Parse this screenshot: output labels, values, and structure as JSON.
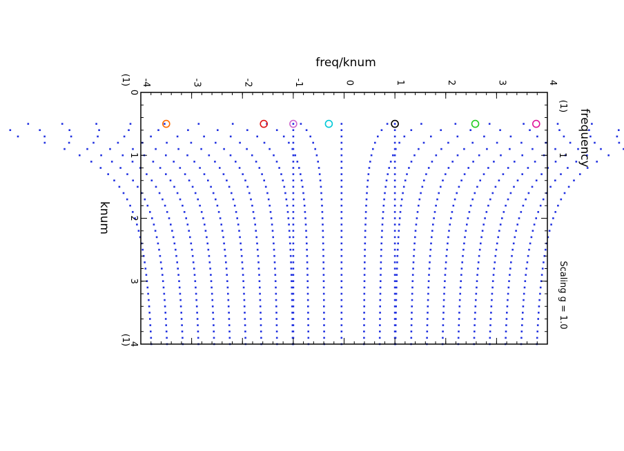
{
  "chart_data": {
    "type": "scatter",
    "title": "",
    "orientation": "rotated-90-clockwise",
    "xlabel": "knum",
    "xlabel_unit": "(1)",
    "ylabel": "freq/knum",
    "ylabel_unit": "(1)",
    "secondary_ylabel": "frequency",
    "secondary_ylabel_unit": "(1)",
    "xlim": [
      0,
      4
    ],
    "ylim": [
      -4,
      4
    ],
    "x_ticks": [
      "0",
      "1",
      "2",
      "3",
      "4"
    ],
    "y_ticks": [
      "-4",
      "-3",
      "-2",
      "-1",
      "0",
      "1",
      "2",
      "3",
      "4"
    ],
    "freq_ticks": [
      "1"
    ],
    "annotation": "Scaling g = 1.0",
    "grid": false,
    "legend": "none",
    "knum_grid": {
      "start": 0.5,
      "step": 0.1,
      "count": 36
    },
    "point_color": "#1f2fe0",
    "curve_levels": [
      -3.68,
      -3.38,
      -3.08,
      -2.78,
      -2.48,
      -2.18,
      -1.88,
      -1.58,
      -1.28,
      -0.98,
      -0.68,
      -0.38,
      0.38,
      0.68,
      0.98,
      1.28,
      1.58,
      1.88,
      2.18,
      2.48,
      2.78,
      3.08,
      3.38,
      3.68
    ],
    "branches": {
      "speed_minus_1": -1.0,
      "speed_plus_1": 1.0,
      "near_zero": -0.05
    },
    "highlighted_points": [
      {
        "x": 0.5,
        "y": -3.5,
        "color": "#ff6a00"
      },
      {
        "x": 0.5,
        "y": -1.58,
        "color": "#e01515"
      },
      {
        "x": 0.5,
        "y": -1.0,
        "color": "#cc66cc"
      },
      {
        "x": 0.5,
        "y": -0.3,
        "color": "#00c8d8"
      },
      {
        "x": 0.5,
        "y": 1.0,
        "color": "#000000"
      },
      {
        "x": 0.5,
        "y": 2.58,
        "color": "#22cc22"
      },
      {
        "x": 0.5,
        "y": 3.78,
        "color": "#e0149a"
      }
    ]
  }
}
